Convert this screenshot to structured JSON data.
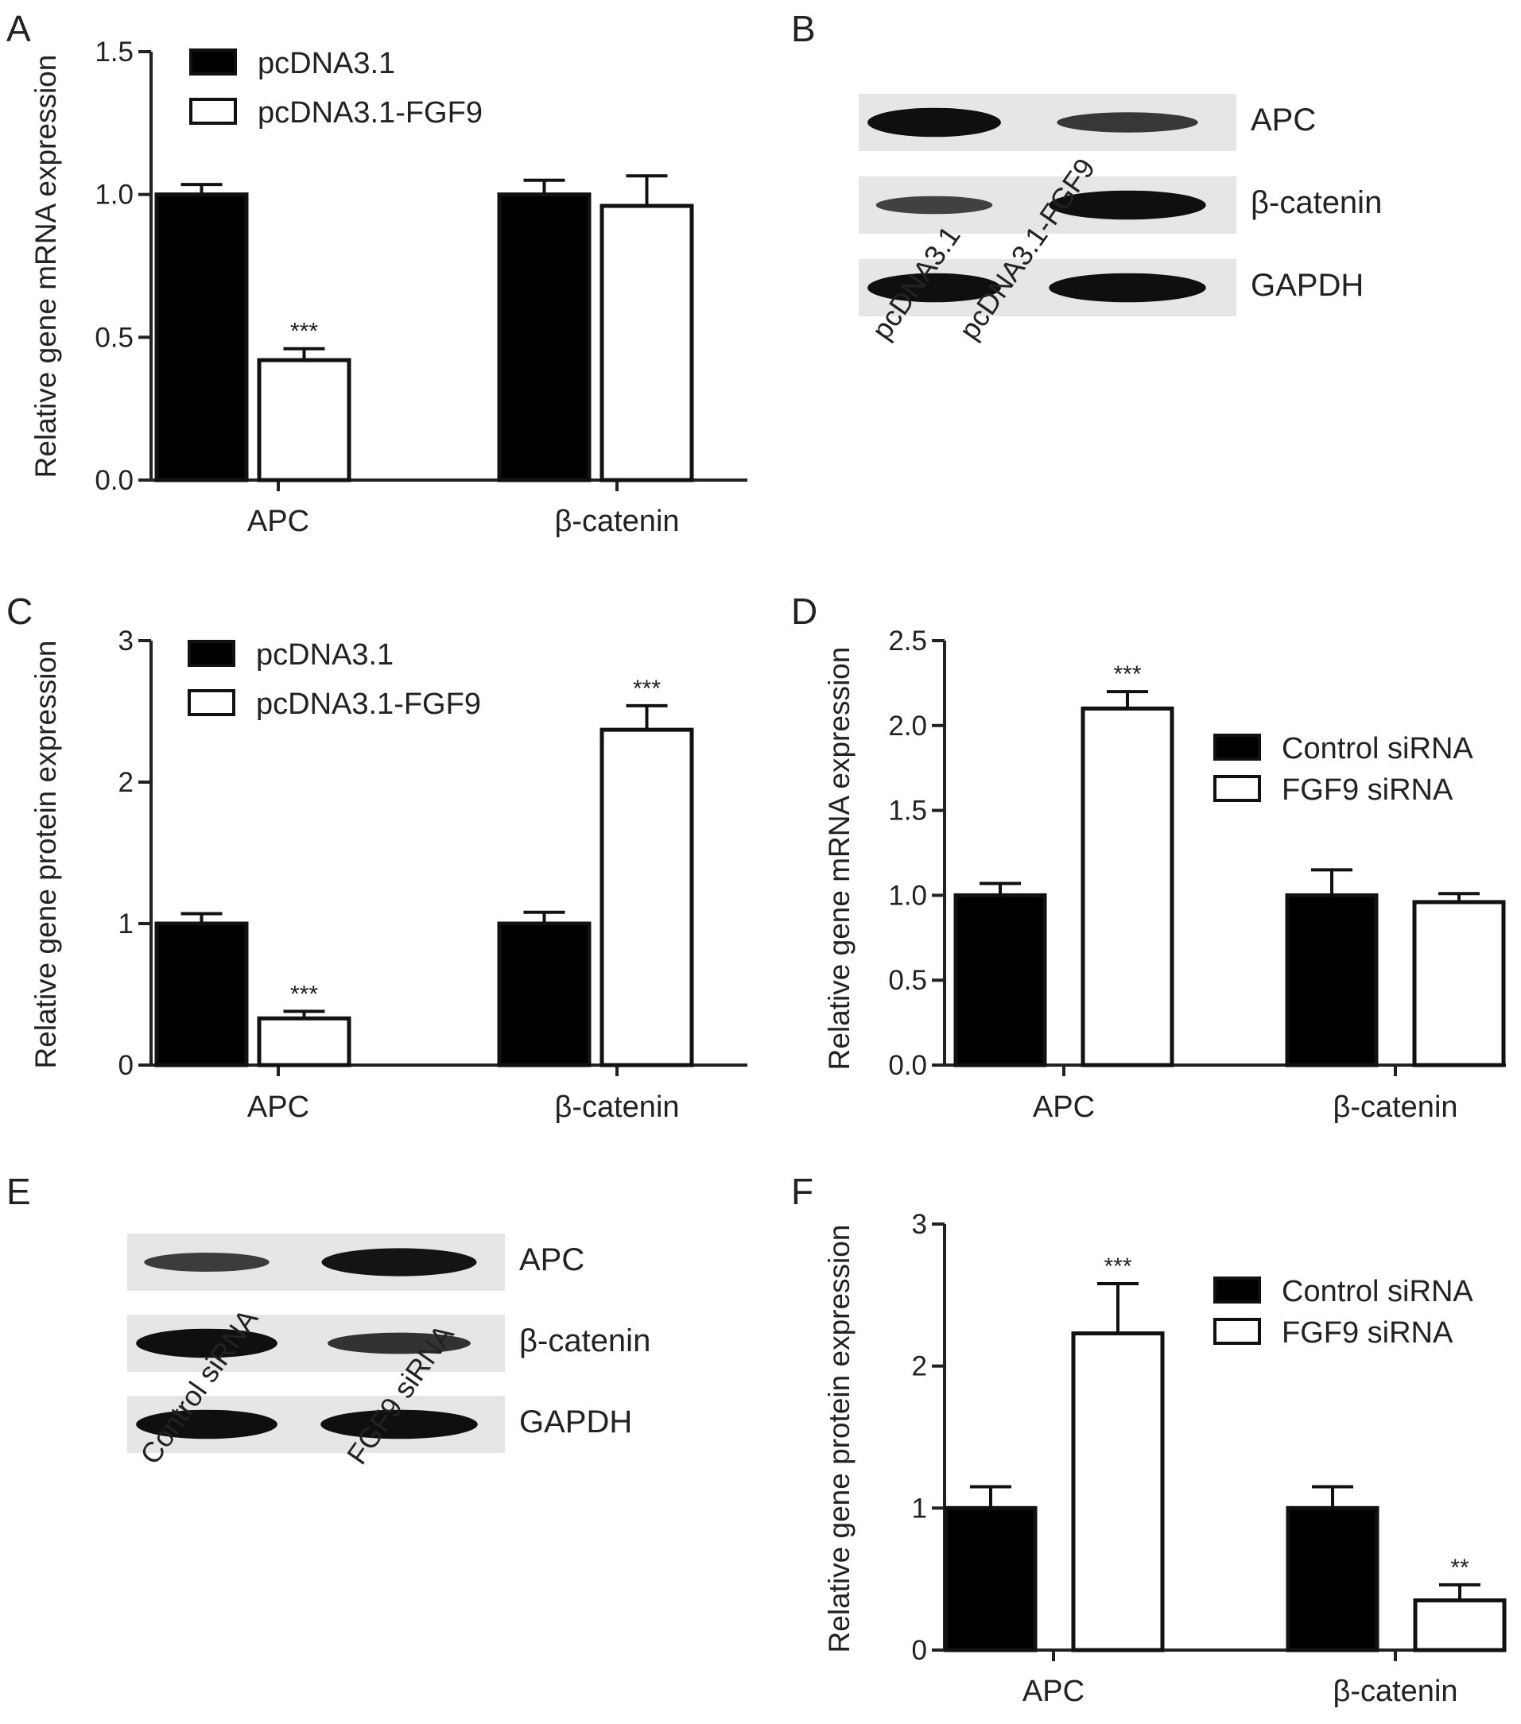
{
  "panels": [
    {
      "id": "A",
      "label": "A"
    },
    {
      "id": "B",
      "label": "B"
    },
    {
      "id": "C",
      "label": "C"
    },
    {
      "id": "D",
      "label": "D"
    },
    {
      "id": "E",
      "label": "E"
    },
    {
      "id": "F",
      "label": "F"
    }
  ],
  "chart_data": [
    {
      "panel": "A",
      "type": "bar",
      "title": "",
      "xlabel": "",
      "ylabel": "Relative gene mRNA expression",
      "categories": [
        "APC",
        "β-catenin"
      ],
      "ylim": [
        0,
        1.5
      ],
      "yticks": [
        0.0,
        0.5,
        1.0,
        1.5
      ],
      "ytick_labels": [
        "0.0",
        "0.5",
        "1.0",
        "1.5"
      ],
      "legend_position": "top-left",
      "series": [
        {
          "name": "pcDNA3.1",
          "fill": "#000000",
          "values": [
            1.0,
            1.0
          ],
          "errors": [
            0.035,
            0.05
          ]
        },
        {
          "name": "pcDNA3.1-FGF9",
          "fill": "#ffffff",
          "values": [
            0.42,
            0.96
          ],
          "errors": [
            0.04,
            0.105
          ]
        }
      ],
      "annotations": [
        {
          "series": 1,
          "category": 0,
          "text": "***"
        }
      ]
    },
    {
      "panel": "C",
      "type": "bar",
      "title": "",
      "xlabel": "",
      "ylabel": "Relative gene protein expression",
      "categories": [
        "APC",
        "β-catenin"
      ],
      "ylim": [
        0,
        3
      ],
      "yticks": [
        0,
        1,
        2,
        3
      ],
      "ytick_labels": [
        "0",
        "1",
        "2",
        "3"
      ],
      "legend_position": "top-left",
      "series": [
        {
          "name": "pcDNA3.1",
          "fill": "#000000",
          "values": [
            1.0,
            1.0
          ],
          "errors": [
            0.07,
            0.08
          ]
        },
        {
          "name": "pcDNA3.1-FGF9",
          "fill": "#ffffff",
          "values": [
            0.33,
            2.37
          ],
          "errors": [
            0.05,
            0.17
          ]
        }
      ],
      "annotations": [
        {
          "series": 1,
          "category": 0,
          "text": "***"
        },
        {
          "series": 1,
          "category": 1,
          "text": "***"
        }
      ]
    },
    {
      "panel": "D",
      "type": "bar",
      "title": "",
      "xlabel": "",
      "ylabel": "Relative gene mRNA expression",
      "categories": [
        "APC",
        "β-catenin"
      ],
      "ylim": [
        0,
        2.5
      ],
      "yticks": [
        0.0,
        0.5,
        1.0,
        1.5,
        2.0,
        2.5
      ],
      "ytick_labels": [
        "0.0",
        "0.5",
        "1.0",
        "1.5",
        "2.0",
        "2.5"
      ],
      "legend_position": "upper-right",
      "series": [
        {
          "name": "Control siRNA",
          "fill": "#000000",
          "values": [
            1.0,
            1.0
          ],
          "errors": [
            0.07,
            0.15
          ]
        },
        {
          "name": "FGF9 siRNA",
          "fill": "#ffffff",
          "values": [
            2.1,
            0.96
          ],
          "errors": [
            0.1,
            0.05
          ]
        }
      ],
      "annotations": [
        {
          "series": 1,
          "category": 0,
          "text": "***"
        }
      ]
    },
    {
      "panel": "F",
      "type": "bar",
      "title": "",
      "xlabel": "",
      "ylabel": "Relative gene protein expression",
      "categories": [
        "APC",
        "β-catenin"
      ],
      "ylim": [
        0,
        3
      ],
      "yticks": [
        0,
        1,
        2,
        3
      ],
      "ytick_labels": [
        "0",
        "1",
        "2",
        "3"
      ],
      "legend_position": "upper-right",
      "series": [
        {
          "name": "Control siRNA",
          "fill": "#000000",
          "values": [
            1.0,
            1.0
          ],
          "errors": [
            0.15,
            0.15
          ]
        },
        {
          "name": "FGF9 siRNA",
          "fill": "#ffffff",
          "values": [
            2.23,
            0.35
          ],
          "errors": [
            0.35,
            0.11
          ]
        }
      ],
      "annotations": [
        {
          "series": 1,
          "category": 0,
          "text": "***"
        },
        {
          "series": 1,
          "category": 1,
          "text": "**"
        }
      ]
    }
  ],
  "blots": [
    {
      "panel": "B",
      "rows": [
        "APC",
        "β-catenin",
        "GAPDH"
      ],
      "lanes": [
        "pcDNA3.1",
        "pcDNA3.1-FGF9"
      ],
      "band_intensity": [
        [
          0.95,
          0.55
        ],
        [
          0.45,
          0.95
        ],
        [
          0.95,
          0.95
        ]
      ]
    },
    {
      "panel": "E",
      "rows": [
        "APC",
        "β-catenin",
        "GAPDH"
      ],
      "lanes": [
        "Control siRNA",
        "FGF9 siRNA"
      ],
      "band_intensity": [
        [
          0.5,
          0.9
        ],
        [
          0.95,
          0.6
        ],
        [
          0.95,
          0.95
        ]
      ]
    }
  ]
}
